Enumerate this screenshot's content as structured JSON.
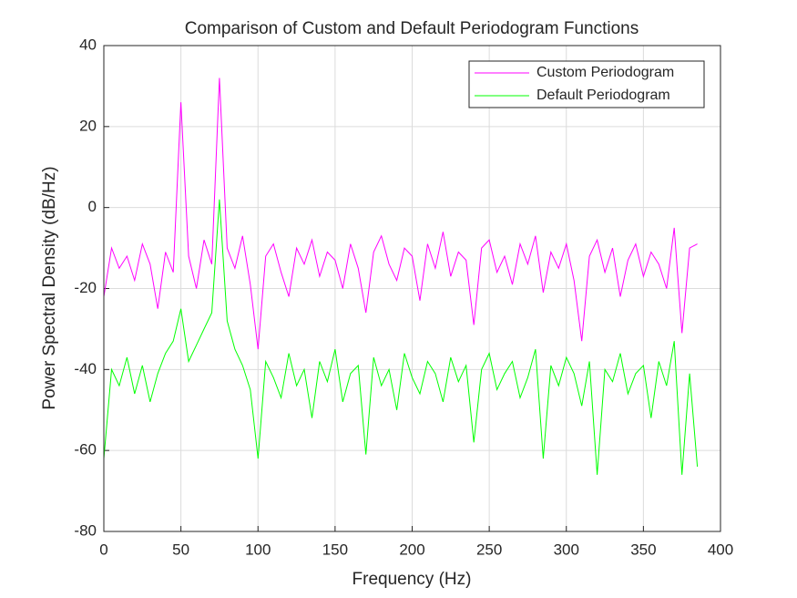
{
  "chart_data": {
    "type": "line",
    "title": "Comparison of Custom and Default Periodogram Functions",
    "xlabel": "Frequency (Hz)",
    "ylabel": "Power Spectral Density (dB/Hz)",
    "x": [
      0,
      5,
      10,
      15,
      20,
      25,
      30,
      35,
      40,
      45,
      50,
      55,
      60,
      65,
      70,
      75,
      80,
      85,
      90,
      95,
      100,
      105,
      110,
      115,
      120,
      125,
      130,
      135,
      140,
      145,
      150,
      155,
      160,
      165,
      170,
      175,
      180,
      185,
      190,
      195,
      200,
      205,
      210,
      215,
      220,
      225,
      230,
      235,
      240,
      245,
      250,
      255,
      260,
      265,
      270,
      275,
      280,
      285,
      290,
      295,
      300,
      305,
      310,
      315,
      320,
      325,
      330,
      335,
      340,
      345,
      350,
      355,
      360,
      365,
      370,
      375,
      380,
      385
    ],
    "series": [
      {
        "name": "Custom Periodogram",
        "color": "#ff00ff",
        "values": [
          -22,
          -10,
          -15,
          -12,
          -18,
          -9,
          -14,
          -25,
          -11,
          -16,
          26,
          -12,
          -20,
          -8,
          -14,
          32,
          -10,
          -15,
          -7,
          -19,
          -35,
          -12,
          -9,
          -16,
          -22,
          -10,
          -14,
          -8,
          -17,
          -11,
          -13,
          -20,
          -9,
          -15,
          -26,
          -11,
          -7,
          -14,
          -18,
          -10,
          -12,
          -23,
          -9,
          -15,
          -6,
          -17,
          -11,
          -13,
          -29,
          -10,
          -8,
          -16,
          -12,
          -19,
          -9,
          -14,
          -7,
          -21,
          -11,
          -15,
          -9,
          -18,
          -33,
          -12,
          -8,
          -16,
          -10,
          -22,
          -13,
          -9,
          -17,
          -11,
          -14,
          -20,
          -5,
          -31,
          -10,
          -9
        ]
      },
      {
        "name": "Default Periodogram",
        "color": "#00ff00",
        "values": [
          -62,
          -40,
          -44,
          -37,
          -46,
          -39,
          -48,
          -41,
          -36,
          -33,
          -25,
          -38,
          -34,
          -30,
          -26,
          2,
          -28,
          -35,
          -39,
          -45,
          -62,
          -38,
          -42,
          -47,
          -36,
          -44,
          -40,
          -52,
          -38,
          -43,
          -35,
          -48,
          -41,
          -39,
          -61,
          -37,
          -44,
          -40,
          -50,
          -36,
          -42,
          -46,
          -38,
          -41,
          -48,
          -37,
          -43,
          -39,
          -58,
          -40,
          -36,
          -45,
          -41,
          -38,
          -47,
          -42,
          -35,
          -62,
          -39,
          -44,
          -37,
          -41,
          -49,
          -38,
          -66,
          -40,
          -43,
          -36,
          -46,
          -41,
          -39,
          -52,
          -38,
          -44,
          -33,
          -66,
          -41,
          -64
        ]
      }
    ],
    "xlim": [
      0,
      400
    ],
    "ylim": [
      -80,
      40
    ],
    "xticks": [
      0,
      50,
      100,
      150,
      200,
      250,
      300,
      350,
      400
    ],
    "yticks": [
      -80,
      -60,
      -40,
      -20,
      0,
      20,
      40
    ],
    "grid": true,
    "legend": "northeast"
  }
}
